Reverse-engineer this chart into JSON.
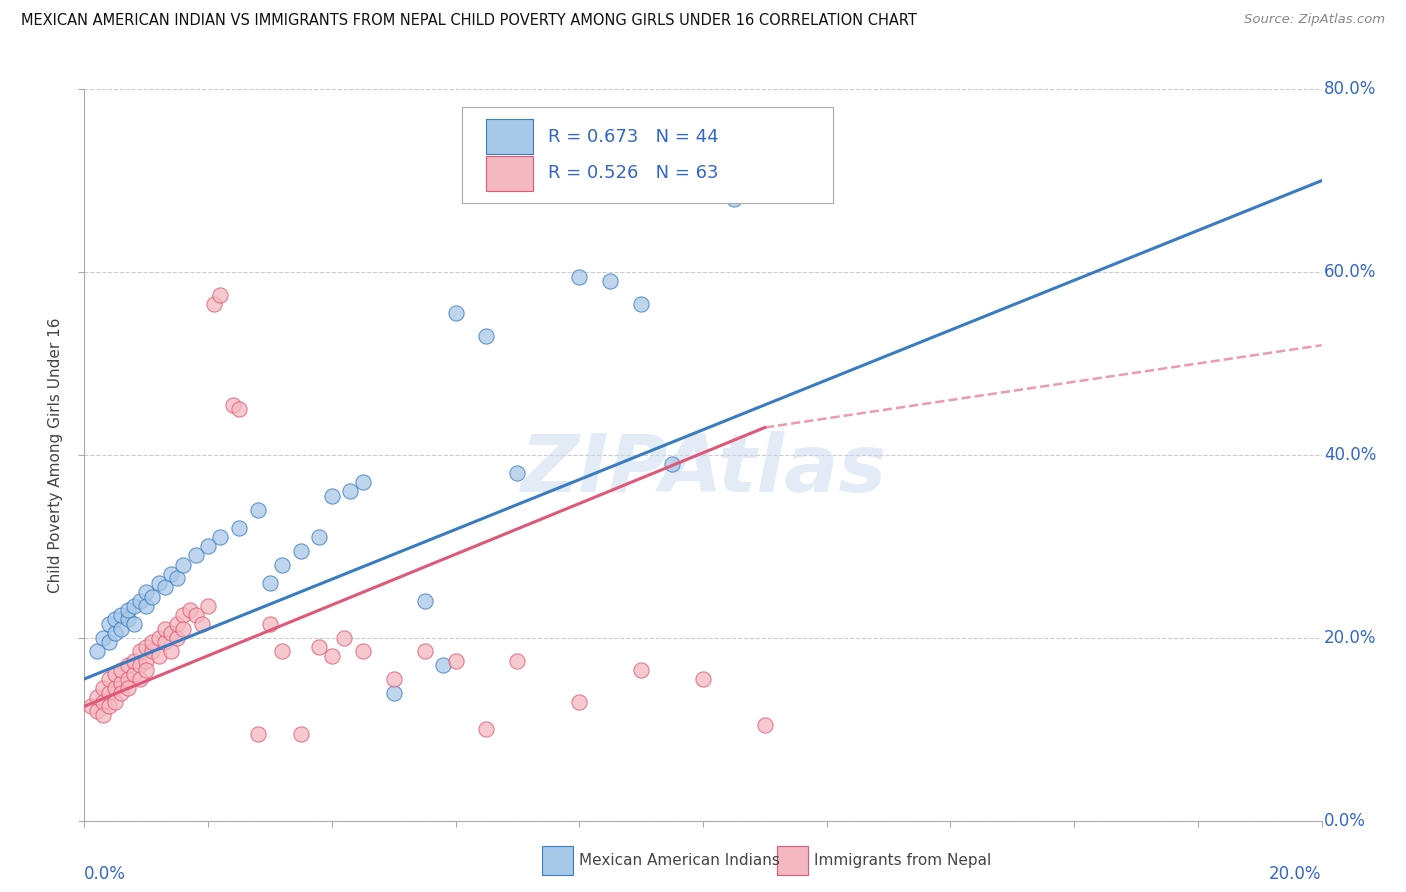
{
  "title": "MEXICAN AMERICAN INDIAN VS IMMIGRANTS FROM NEPAL CHILD POVERTY AMONG GIRLS UNDER 16 CORRELATION CHART",
  "source": "Source: ZipAtlas.com",
  "ylabel": "Child Poverty Among Girls Under 16",
  "watermark": "ZIPAtlas",
  "blue_label": "Mexican American Indians",
  "pink_label": "Immigrants from Nepal",
  "blue_R": 0.673,
  "blue_N": 44,
  "pink_R": 0.526,
  "pink_N": 63,
  "xlim": [
    0.0,
    0.2
  ],
  "ylim": [
    0.0,
    0.8
  ],
  "yticks": [
    0.0,
    0.2,
    0.4,
    0.6,
    0.8
  ],
  "blue_color": "#a8c8e8",
  "pink_color": "#f4b8c0",
  "blue_line_color": "#3a7cc1",
  "pink_line_color": "#e05878",
  "grid_color": "#cccccc",
  "text_color": "#3366cc",
  "blue_scatter": [
    [
      0.002,
      0.185
    ],
    [
      0.003,
      0.2
    ],
    [
      0.004,
      0.195
    ],
    [
      0.004,
      0.215
    ],
    [
      0.005,
      0.205
    ],
    [
      0.005,
      0.22
    ],
    [
      0.006,
      0.21
    ],
    [
      0.006,
      0.225
    ],
    [
      0.007,
      0.22
    ],
    [
      0.007,
      0.23
    ],
    [
      0.008,
      0.235
    ],
    [
      0.008,
      0.215
    ],
    [
      0.009,
      0.24
    ],
    [
      0.01,
      0.235
    ],
    [
      0.01,
      0.25
    ],
    [
      0.011,
      0.245
    ],
    [
      0.012,
      0.26
    ],
    [
      0.013,
      0.255
    ],
    [
      0.014,
      0.27
    ],
    [
      0.015,
      0.265
    ],
    [
      0.016,
      0.28
    ],
    [
      0.018,
      0.29
    ],
    [
      0.02,
      0.3
    ],
    [
      0.022,
      0.31
    ],
    [
      0.025,
      0.32
    ],
    [
      0.028,
      0.34
    ],
    [
      0.03,
      0.26
    ],
    [
      0.032,
      0.28
    ],
    [
      0.035,
      0.295
    ],
    [
      0.038,
      0.31
    ],
    [
      0.04,
      0.355
    ],
    [
      0.043,
      0.36
    ],
    [
      0.045,
      0.37
    ],
    [
      0.05,
      0.14
    ],
    [
      0.055,
      0.24
    ],
    [
      0.058,
      0.17
    ],
    [
      0.06,
      0.555
    ],
    [
      0.065,
      0.53
    ],
    [
      0.07,
      0.38
    ],
    [
      0.08,
      0.595
    ],
    [
      0.085,
      0.59
    ],
    [
      0.09,
      0.565
    ],
    [
      0.095,
      0.39
    ],
    [
      0.105,
      0.68
    ]
  ],
  "pink_scatter": [
    [
      0.001,
      0.125
    ],
    [
      0.002,
      0.12
    ],
    [
      0.002,
      0.135
    ],
    [
      0.003,
      0.13
    ],
    [
      0.003,
      0.115
    ],
    [
      0.003,
      0.145
    ],
    [
      0.004,
      0.14
    ],
    [
      0.004,
      0.125
    ],
    [
      0.004,
      0.155
    ],
    [
      0.005,
      0.145
    ],
    [
      0.005,
      0.16
    ],
    [
      0.005,
      0.13
    ],
    [
      0.006,
      0.15
    ],
    [
      0.006,
      0.165
    ],
    [
      0.006,
      0.14
    ],
    [
      0.007,
      0.155
    ],
    [
      0.007,
      0.17
    ],
    [
      0.007,
      0.145
    ],
    [
      0.008,
      0.16
    ],
    [
      0.008,
      0.175
    ],
    [
      0.009,
      0.17
    ],
    [
      0.009,
      0.155
    ],
    [
      0.009,
      0.185
    ],
    [
      0.01,
      0.175
    ],
    [
      0.01,
      0.19
    ],
    [
      0.01,
      0.165
    ],
    [
      0.011,
      0.185
    ],
    [
      0.011,
      0.195
    ],
    [
      0.012,
      0.2
    ],
    [
      0.012,
      0.18
    ],
    [
      0.013,
      0.195
    ],
    [
      0.013,
      0.21
    ],
    [
      0.014,
      0.205
    ],
    [
      0.014,
      0.185
    ],
    [
      0.015,
      0.2
    ],
    [
      0.015,
      0.215
    ],
    [
      0.016,
      0.225
    ],
    [
      0.016,
      0.21
    ],
    [
      0.017,
      0.23
    ],
    [
      0.018,
      0.225
    ],
    [
      0.019,
      0.215
    ],
    [
      0.02,
      0.235
    ],
    [
      0.021,
      0.565
    ],
    [
      0.022,
      0.575
    ],
    [
      0.024,
      0.455
    ],
    [
      0.025,
      0.45
    ],
    [
      0.028,
      0.095
    ],
    [
      0.03,
      0.215
    ],
    [
      0.032,
      0.185
    ],
    [
      0.035,
      0.095
    ],
    [
      0.038,
      0.19
    ],
    [
      0.04,
      0.18
    ],
    [
      0.042,
      0.2
    ],
    [
      0.045,
      0.185
    ],
    [
      0.05,
      0.155
    ],
    [
      0.055,
      0.185
    ],
    [
      0.06,
      0.175
    ],
    [
      0.065,
      0.1
    ],
    [
      0.07,
      0.175
    ],
    [
      0.08,
      0.13
    ],
    [
      0.09,
      0.165
    ],
    [
      0.1,
      0.155
    ],
    [
      0.11,
      0.105
    ]
  ]
}
